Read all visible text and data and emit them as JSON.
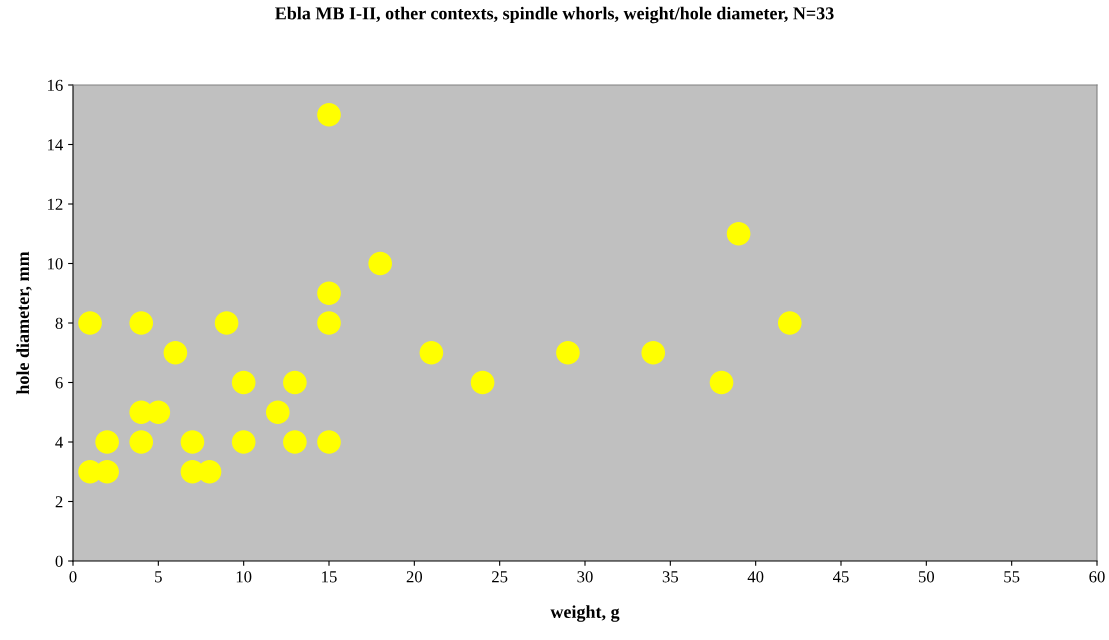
{
  "chart_data": {
    "type": "scatter",
    "title": "Ebla MB I-II, other contexts, spindle whorls, weight/hole diameter, N=33",
    "xlabel": "weight, g",
    "ylabel": "hole diameter, mm",
    "xlim": [
      0,
      60
    ],
    "xticks": [
      0,
      5,
      10,
      15,
      20,
      25,
      30,
      35,
      40,
      45,
      50,
      55,
      60
    ],
    "ylim": [
      0,
      16
    ],
    "yticks": [
      0,
      2,
      4,
      6,
      8,
      10,
      12,
      14,
      16
    ],
    "grid": false,
    "legend": false,
    "marker": "circle",
    "series": [
      {
        "color": "#ffff00",
        "x": [
          1,
          1,
          2,
          2,
          4,
          4,
          4,
          5,
          6,
          7,
          7,
          8,
          9,
          10,
          10,
          12,
          13,
          13,
          15,
          15,
          15,
          15,
          18,
          21,
          24,
          29,
          34,
          38,
          39,
          42
        ],
        "values": [
          8,
          3,
          4,
          3,
          8,
          5,
          4,
          5,
          7,
          4,
          3,
          3,
          8,
          6,
          4,
          5,
          6,
          4,
          15,
          9,
          8,
          4,
          10,
          7,
          6,
          7,
          7,
          6,
          11,
          8
        ]
      }
    ]
  }
}
